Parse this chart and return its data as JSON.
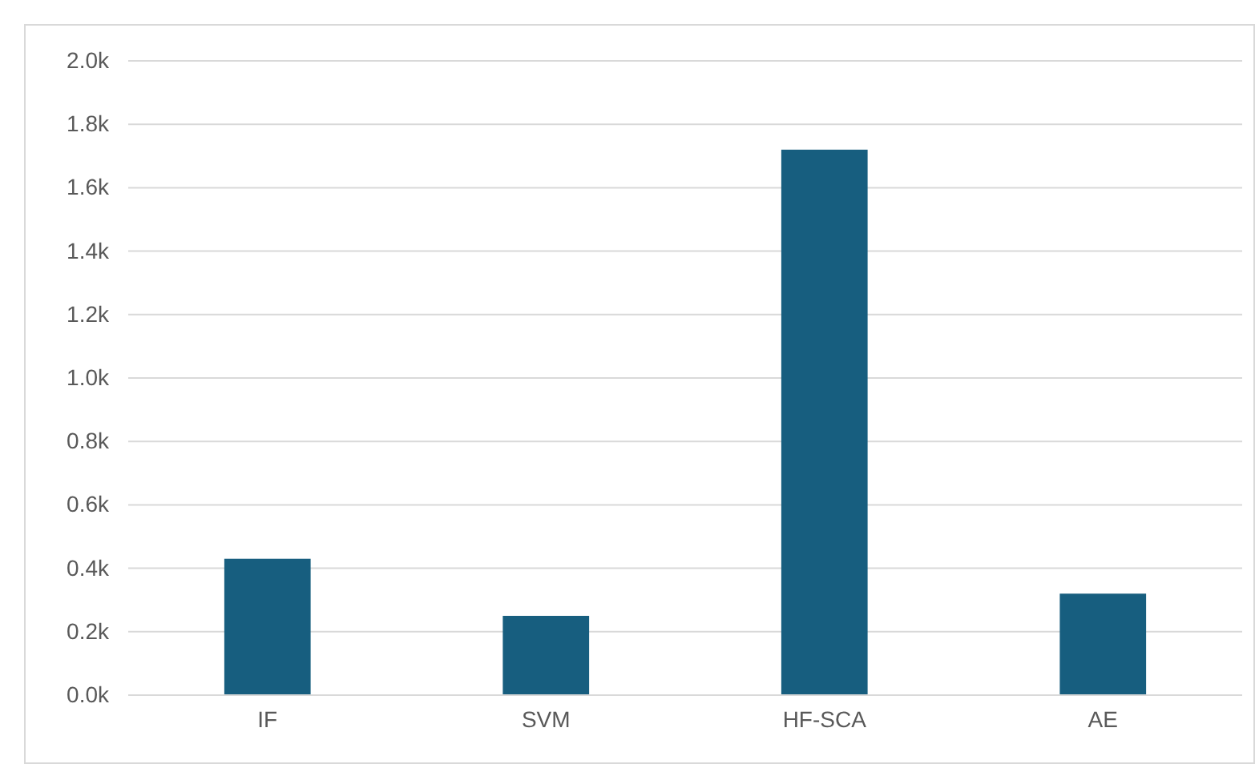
{
  "chart_data": {
    "type": "bar",
    "categories": [
      "IF",
      "SVM",
      "HF-SCA",
      "AE"
    ],
    "values": [
      0.43,
      0.25,
      1.72,
      0.32
    ],
    "color": "#175e7f",
    "ylim": [
      0,
      2
    ],
    "yticks": [
      {
        "value": 0,
        "label": "0.0k"
      },
      {
        "value": 0.2,
        "label": "0.2k"
      },
      {
        "value": 0.4,
        "label": "0.4k"
      },
      {
        "value": 0.6,
        "label": "0.6k"
      },
      {
        "value": 0.8,
        "label": "0.8k"
      },
      {
        "value": 1,
        "label": "1.0k"
      },
      {
        "value": 1.2,
        "label": "1.2k"
      },
      {
        "value": 1.4,
        "label": "1.4k"
      },
      {
        "value": 1.6,
        "label": "1.6k"
      },
      {
        "value": 1.8,
        "label": "1.8k"
      },
      {
        "value": 2,
        "label": "2.0k"
      }
    ],
    "grid": "y"
  }
}
